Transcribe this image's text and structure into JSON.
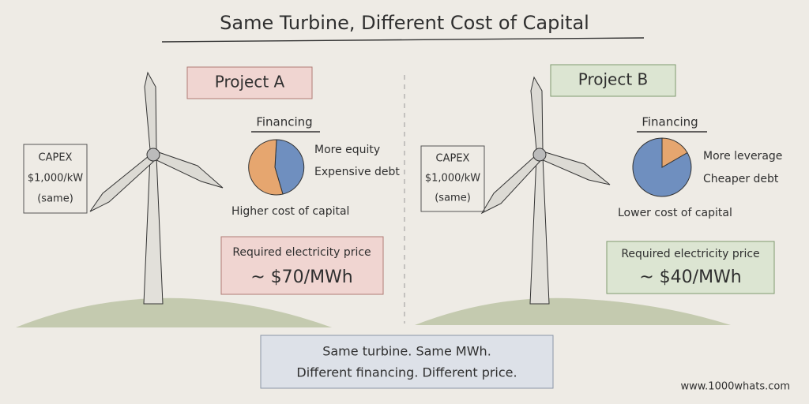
{
  "header": {
    "title": "Same Turbine, Different Cost of Capital"
  },
  "projects": [
    {
      "label": "Project A",
      "capex": [
        "CAPEX",
        "$1,000/kW",
        "(same)"
      ],
      "financing_heading": "Financing",
      "financing_notes": [
        "More equity",
        "Expensive debt"
      ],
      "cost_of_capital": "Higher cost of capital",
      "price_label": "Required electricity price",
      "price": "~ $70/MWh"
    },
    {
      "label": "Project B",
      "capex": [
        "CAPEX",
        "$1,000/kW",
        "(same)"
      ],
      "financing_heading": "Financing",
      "financing_notes": [
        "More leverage",
        "Cheaper debt"
      ],
      "cost_of_capital": "Lower cost of capital",
      "price_label": "Required electricity price",
      "price": "~ $40/MWh"
    }
  ],
  "footer": {
    "lines": [
      "Same turbine. Same MWh.",
      "Different financing. Different price."
    ]
  },
  "website": "www.1000whats.com"
}
